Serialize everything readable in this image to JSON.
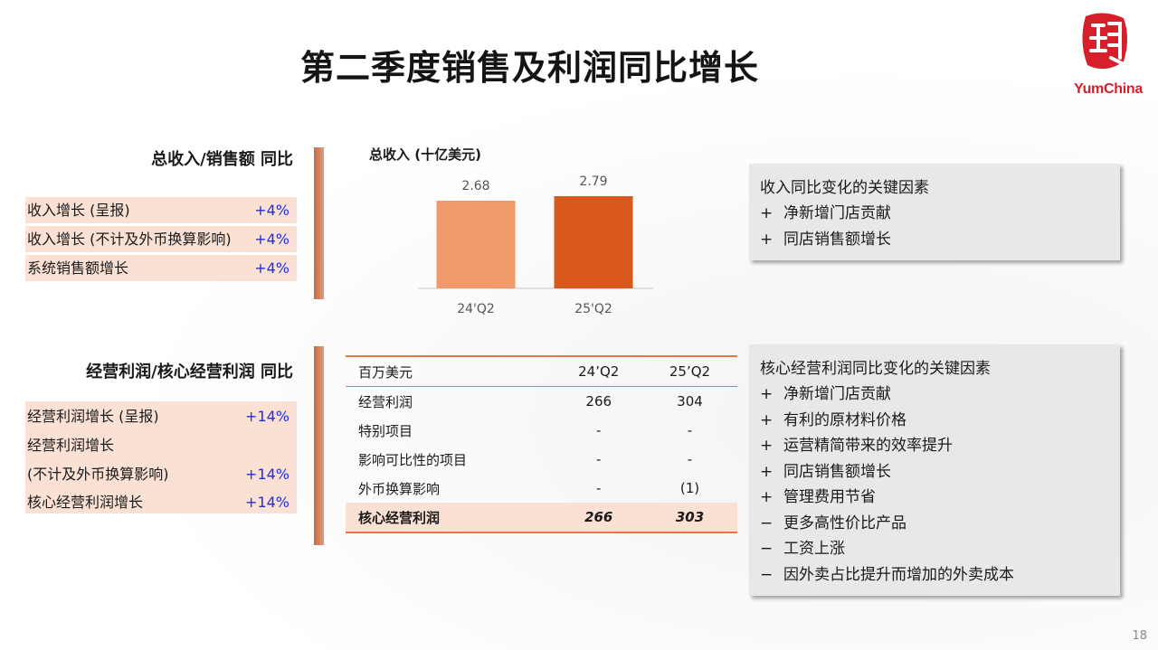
{
  "title": "第二季度销售及利润同比增长",
  "logo": {
    "text": "YumChina",
    "mark_icon": "yum-china-seal-icon",
    "color": "#d71f2b"
  },
  "revenue_section": {
    "heading": "总收入/销售额 同比",
    "rows": [
      {
        "label": "收入增长 (呈报)",
        "value": "+4%"
      },
      {
        "label": "收入增长 (不计及外币换算影响)",
        "value": "+4%"
      },
      {
        "label": "系统销售额增长",
        "value": "+4%"
      }
    ]
  },
  "chart_data": {
    "type": "bar",
    "title": "总收入 (十亿美元)",
    "categories": [
      "24'Q2",
      "25'Q2"
    ],
    "values": [
      2.68,
      2.79
    ],
    "value_labels": [
      "2.68",
      "2.79"
    ],
    "colors": [
      "#f1996a",
      "#d8581d"
    ],
    "ylim": [
      0,
      3.0
    ],
    "xlabel": "",
    "ylabel": ""
  },
  "revenue_factors": {
    "title": "收入同比变化的关键因素",
    "items": [
      {
        "sign": "+",
        "text": "净新增门店贡献"
      },
      {
        "sign": "+",
        "text": "同店销售额增长"
      }
    ]
  },
  "profit_section": {
    "heading": "经营利润/核心经营利润 同比",
    "rows": [
      {
        "label": "经营利润增长 (呈报)",
        "value": "+14%"
      },
      {
        "label": "经营利润增长",
        "value": ""
      },
      {
        "label": "(不计及外币换算影响)",
        "value": "+14%"
      },
      {
        "label": "核心经营利润增长",
        "value": "+14%"
      }
    ]
  },
  "profit_table": {
    "header": [
      "百万美元",
      "24’Q2",
      "25’Q2"
    ],
    "rows": [
      [
        "经营利润",
        "266",
        "304"
      ],
      [
        "特别项目",
        "-",
        "-"
      ],
      [
        "影响可比性的项目",
        "-",
        "-"
      ],
      [
        "外币换算影响",
        "-",
        "(1)"
      ]
    ],
    "total": [
      "核心经营利润",
      "266",
      "303"
    ]
  },
  "profit_factors": {
    "title": "核心经营利润同比变化的关键因素",
    "items": [
      {
        "sign": "+",
        "text": "净新增门店贡献"
      },
      {
        "sign": "+",
        "text": "有利的原材料价格"
      },
      {
        "sign": "+",
        "text": "运营精简带来的效率提升"
      },
      {
        "sign": "+",
        "text": "同店销售额增长"
      },
      {
        "sign": "+",
        "text": "管理费用节省"
      },
      {
        "sign": "−",
        "text": "更多高性价比产品"
      },
      {
        "sign": "−",
        "text": "工资上涨"
      },
      {
        "sign": "−",
        "text": "因外卖占比提升而增加的外卖成本"
      }
    ]
  },
  "page_number": "18"
}
